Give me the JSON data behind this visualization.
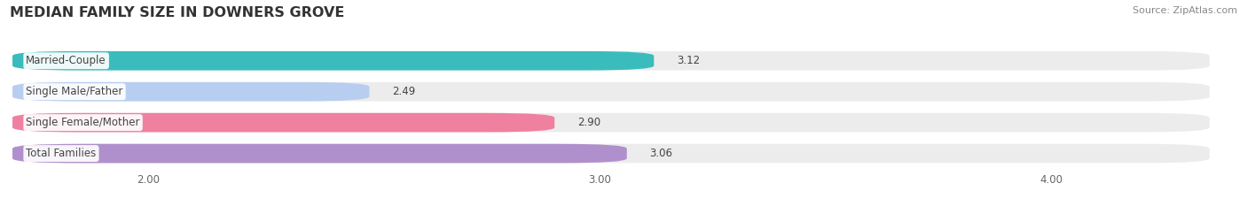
{
  "title": "MEDIAN FAMILY SIZE IN DOWNERS GROVE",
  "source": "Source: ZipAtlas.com",
  "categories": [
    "Married-Couple",
    "Single Male/Father",
    "Single Female/Mother",
    "Total Families"
  ],
  "values": [
    3.12,
    2.49,
    2.9,
    3.06
  ],
  "bar_colors": [
    "#3bbcbc",
    "#b8cef0",
    "#f080a0",
    "#b090cc"
  ],
  "xlim": [
    1.7,
    4.35
  ],
  "xmin": 1.7,
  "xticks": [
    2.0,
    3.0,
    4.0
  ],
  "xtick_labels": [
    "2.00",
    "3.00",
    "4.00"
  ],
  "background_color": "#ffffff",
  "bar_bg_color": "#ececec",
  "bar_height": 0.62,
  "bar_gap": 0.18,
  "title_fontsize": 11.5,
  "label_fontsize": 8.5,
  "value_fontsize": 8.5,
  "source_fontsize": 8,
  "grid_color": "#ffffff",
  "text_color": "#444444",
  "source_color": "#888888"
}
